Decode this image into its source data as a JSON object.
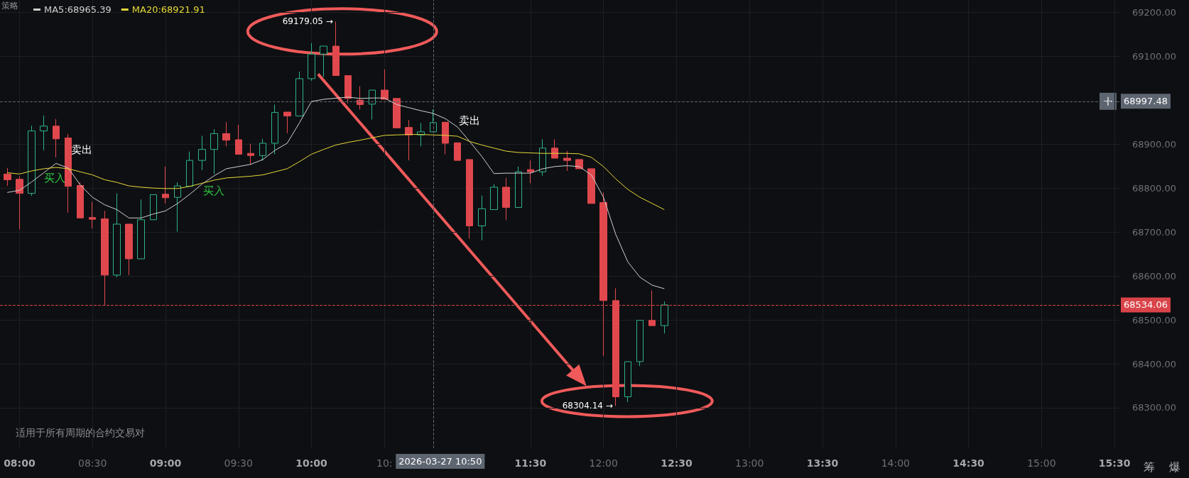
{
  "chart_data": {
    "type": "candlestick",
    "x": [
      "2026-03-27T07:55",
      "2026-03-27T08:00",
      "2026-03-27T08:05",
      "2026-03-27T08:10",
      "2026-03-27T08:15",
      "2026-03-27T08:20",
      "2026-03-27T08:25",
      "2026-03-27T08:30",
      "2026-03-27T08:35",
      "2026-03-27T08:40",
      "2026-03-27T08:45",
      "2026-03-27T08:50",
      "2026-03-27T08:55",
      "2026-03-27T09:00",
      "2026-03-27T09:05",
      "2026-03-27T09:10",
      "2026-03-27T09:15",
      "2026-03-27T09:20",
      "2026-03-27T09:25",
      "2026-03-27T09:30",
      "2026-03-27T09:35",
      "2026-03-27T09:40",
      "2026-03-27T09:45",
      "2026-03-27T09:50",
      "2026-03-27T09:55",
      "2026-03-27T10:00",
      "2026-03-27T10:05",
      "2026-03-27T10:10",
      "2026-03-27T10:15",
      "2026-03-27T10:20",
      "2026-03-27T10:25",
      "2026-03-27T10:30",
      "2026-03-27T10:35",
      "2026-03-27T10:40",
      "2026-03-27T10:45",
      "2026-03-27T10:50",
      "2026-03-27T10:55",
      "2026-03-27T11:00",
      "2026-03-27T11:05",
      "2026-03-27T11:10",
      "2026-03-27T11:15",
      "2026-03-27T11:20",
      "2026-03-27T11:25",
      "2026-03-27T11:30",
      "2026-03-27T11:35",
      "2026-03-27T11:40",
      "2026-03-27T11:45",
      "2026-03-27T11:50",
      "2026-03-27T11:55",
      "2026-03-27T12:00",
      "2026-03-27T12:05",
      "2026-03-27T12:10",
      "2026-03-27T12:15",
      "2026-03-27T12:20",
      "2026-03-27T12:25"
    ],
    "ohlc": [
      [
        68832,
        68846,
        68805,
        68819
      ],
      [
        68820,
        68827,
        68706,
        68788
      ],
      [
        68788,
        68942,
        68782,
        68930
      ],
      [
        68930,
        68965,
        68886,
        68941
      ],
      [
        68941,
        68957,
        68870,
        68912
      ],
      [
        68914,
        68923,
        68744,
        68804
      ],
      [
        68806,
        68813,
        68731,
        68732
      ],
      [
        68733,
        68769,
        68708,
        68729
      ],
      [
        68730,
        68748,
        68534,
        68602
      ],
      [
        68602,
        68788,
        68597,
        68718
      ],
      [
        68718,
        68718,
        68602,
        68639
      ],
      [
        68639,
        68774,
        68639,
        68728
      ],
      [
        68728,
        68785,
        68728,
        68785
      ],
      [
        68786,
        68849,
        68765,
        68778
      ],
      [
        68779,
        68813,
        68701,
        68805
      ],
      [
        68804,
        68883,
        68804,
        68863
      ],
      [
        68863,
        68919,
        68841,
        68888
      ],
      [
        68888,
        68934,
        68832,
        68924
      ],
      [
        68924,
        68950,
        68895,
        68909
      ],
      [
        68910,
        68944,
        68877,
        68877
      ],
      [
        68879,
        68901,
        68853,
        68874
      ],
      [
        68874,
        68912,
        68862,
        68902
      ],
      [
        68902,
        68990,
        68877,
        68972
      ],
      [
        68973,
        68973,
        68925,
        68964
      ],
      [
        68964,
        69065,
        68964,
        69049
      ],
      [
        69049,
        69130,
        69044,
        69105
      ],
      [
        69105,
        69123,
        69053,
        69123
      ],
      [
        69123,
        69179.05,
        69056,
        69056
      ],
      [
        69056,
        69056,
        68993,
        69004
      ],
      [
        69000,
        69032,
        68979,
        68990
      ],
      [
        68991,
        69023,
        68956,
        69023
      ],
      [
        69023,
        69070,
        69002,
        69002
      ],
      [
        69004,
        69004,
        68937,
        68937
      ],
      [
        68938,
        68955,
        68863,
        68921
      ],
      [
        68921,
        68948,
        68895,
        68928
      ],
      [
        68928,
        68979,
        68928,
        68949
      ],
      [
        68950,
        68950,
        68877,
        68902
      ],
      [
        68903,
        68903,
        68863,
        68863
      ],
      [
        68865,
        68865,
        68685,
        68714
      ],
      [
        68714,
        68783,
        68681,
        68753
      ],
      [
        68751,
        68809,
        68751,
        68802
      ],
      [
        68802,
        68823,
        68727,
        68756
      ],
      [
        68756,
        68849,
        68756,
        68837
      ],
      [
        68842,
        68863,
        68811,
        68837
      ],
      [
        68837,
        68911,
        68828,
        68891
      ],
      [
        68891,
        68911,
        68868,
        68868
      ],
      [
        68868,
        68884,
        68839,
        68863
      ],
      [
        68865,
        68865,
        68844,
        68844
      ],
      [
        68844,
        68844,
        68765,
        68765
      ],
      [
        68767,
        68790,
        68418,
        68544
      ],
      [
        68544,
        68572,
        68304.14,
        68325
      ],
      [
        68325,
        68405,
        68313,
        68405
      ],
      [
        68405,
        68499,
        68395,
        68499
      ],
      [
        68499,
        68567,
        68487,
        68487
      ],
      [
        68487,
        68542,
        68469,
        68534.06
      ]
    ],
    "colors": [
      "#e0484e",
      "#e0484e",
      "#2db38a",
      "#2db38a",
      "#e0484e",
      "#e0484e",
      "#e0484e",
      "#e0484e",
      "#e0484e",
      "#2db38a",
      "#e0484e",
      "#2db38a",
      "#2db38a",
      "#e0484e",
      "#2db38a",
      "#2db38a",
      "#2db38a",
      "#2db38a",
      "#e0484e",
      "#e0484e",
      "#e0484e",
      "#2db38a",
      "#2db38a",
      "#e0484e",
      "#2db38a",
      "#2db38a",
      "#2db38a",
      "#e0484e",
      "#e0484e",
      "#e0484e",
      "#2db38a",
      "#e0484e",
      "#e0484e",
      "#e0484e",
      "#2db38a",
      "#2db38a",
      "#e0484e",
      "#e0484e",
      "#e0484e",
      "#2db38a",
      "#2db38a",
      "#e0484e",
      "#2db38a",
      "#e0484e",
      "#2db38a",
      "#e0484e",
      "#e0484e",
      "#e0484e",
      "#e0484e",
      "#e0484e",
      "#e0484e",
      "#2db38a",
      "#2db38a",
      "#e0484e",
      "#2db38a"
    ],
    "series": [
      {
        "name": "MA5:68965.39",
        "type": "line",
        "color": "#cfcfcf",
        "values": [
          68790,
          68795,
          68814,
          68835,
          68856,
          68846,
          68807,
          68779,
          68762,
          68751,
          68732,
          68732,
          68741,
          68748,
          68765,
          68786,
          68809,
          68828,
          68844,
          68849,
          68854,
          68865,
          68886,
          68902,
          68948,
          68997,
          69002,
          null,
          69007,
          69004,
          69005,
          69005,
          68990,
          68983,
          68976,
          68970,
          68958,
          68939,
          68906,
          68872,
          68833,
          68834,
          68834,
          68834,
          68844,
          68849,
          68851,
          68849,
          68830,
          68779,
          68695,
          68632,
          68597,
          68579,
          68571
        ]
      },
      {
        "name": "MA20:68921.91",
        "type": "line",
        "color": "#e6d93a",
        "values": [
          68835,
          68832,
          68839,
          68844,
          68847,
          68844,
          68837,
          68830,
          68819,
          68813,
          68805,
          68802,
          68800,
          68799,
          68799,
          68804,
          68811,
          68818,
          68823,
          68825,
          68827,
          68830,
          68837,
          68844,
          68860,
          68877,
          68888,
          68898,
          68904,
          68909,
          null,
          68920,
          68921,
          68922,
          68922,
          68921,
          68920,
          68918,
          68906,
          68898,
          68891,
          68884,
          68881,
          68880,
          68879,
          68879,
          68879,
          68878,
          68870,
          68849,
          68821,
          68797,
          68779,
          68765,
          68751
        ]
      }
    ],
    "xlim": [
      "2026-03-27T07:52",
      "2026-03-27T15:32"
    ],
    "xticks": [
      {
        "value": "2026-03-27T08:00",
        "label": "08:00"
      },
      {
        "value": "2026-03-27T08:30",
        "label": "08:30"
      },
      {
        "value": "2026-03-27T09:00",
        "label": "09:00"
      },
      {
        "value": "2026-03-27T09:30",
        "label": "09:30"
      },
      {
        "value": "2026-03-27T10:00",
        "label": "10:00"
      },
      {
        "value": "2026-03-27T10:30",
        "label": "10:"
      },
      {
        "value": "2026-03-27T11:30",
        "label": "11:30"
      },
      {
        "value": "2026-03-27T12:00",
        "label": "12:00"
      },
      {
        "value": "2026-03-27T12:30",
        "label": "12:30"
      },
      {
        "value": "2026-03-27T13:00",
        "label": "13:00"
      },
      {
        "value": "2026-03-27T13:30",
        "label": "13:30"
      },
      {
        "value": "2026-03-27T14:00",
        "label": "14:00"
      },
      {
        "value": "2026-03-27T14:30",
        "label": "14:30"
      },
      {
        "value": "2026-03-27T15:00",
        "label": "15:00"
      },
      {
        "value": "2026-03-27T15:30",
        "label": "15:30"
      }
    ],
    "ylim": [
      68208,
      69228
    ],
    "yticks": [
      {
        "value": 68300,
        "label": "68300.00"
      },
      {
        "value": 68400,
        "label": "68400.00"
      },
      {
        "value": 68500,
        "label": "68500.00"
      },
      {
        "value": 68600,
        "label": "68600.00"
      },
      {
        "value": 68700,
        "label": "68700.00"
      },
      {
        "value": 68800,
        "label": "68800.00"
      },
      {
        "value": 68900,
        "label": "68900.00"
      },
      {
        "value": 69100,
        "label": "69100.00"
      },
      {
        "value": 69200,
        "label": "69200.00"
      }
    ],
    "grid": true,
    "legend": "top left",
    "ref_lines": [
      {
        "axis": "y",
        "value": 68997.48,
        "label": "68997.48",
        "color": "#5d6570",
        "line_style": "dashed"
      },
      {
        "axis": "y",
        "value": 68534.06,
        "label": "68534.06",
        "color": "#d9444a",
        "line_style": "dashed"
      },
      {
        "axis": "x",
        "value": "2026-03-27T10:50",
        "label": "2026-03-27 10:50",
        "color": "#5d6570",
        "line_style": "dashed"
      }
    ],
    "annotations": [
      {
        "text": "69179.05 →",
        "x": "2026-03-27T10:10",
        "y": 69179.05
      },
      {
        "text": "68304.14 →",
        "x": "2026-03-27T12:05",
        "y": 68304.14
      },
      "卖出",
      "买入",
      "卖出",
      "买入",
      "策略",
      "适用于所有周期的合约交易对",
      "筹",
      "爆"
    ]
  }
}
